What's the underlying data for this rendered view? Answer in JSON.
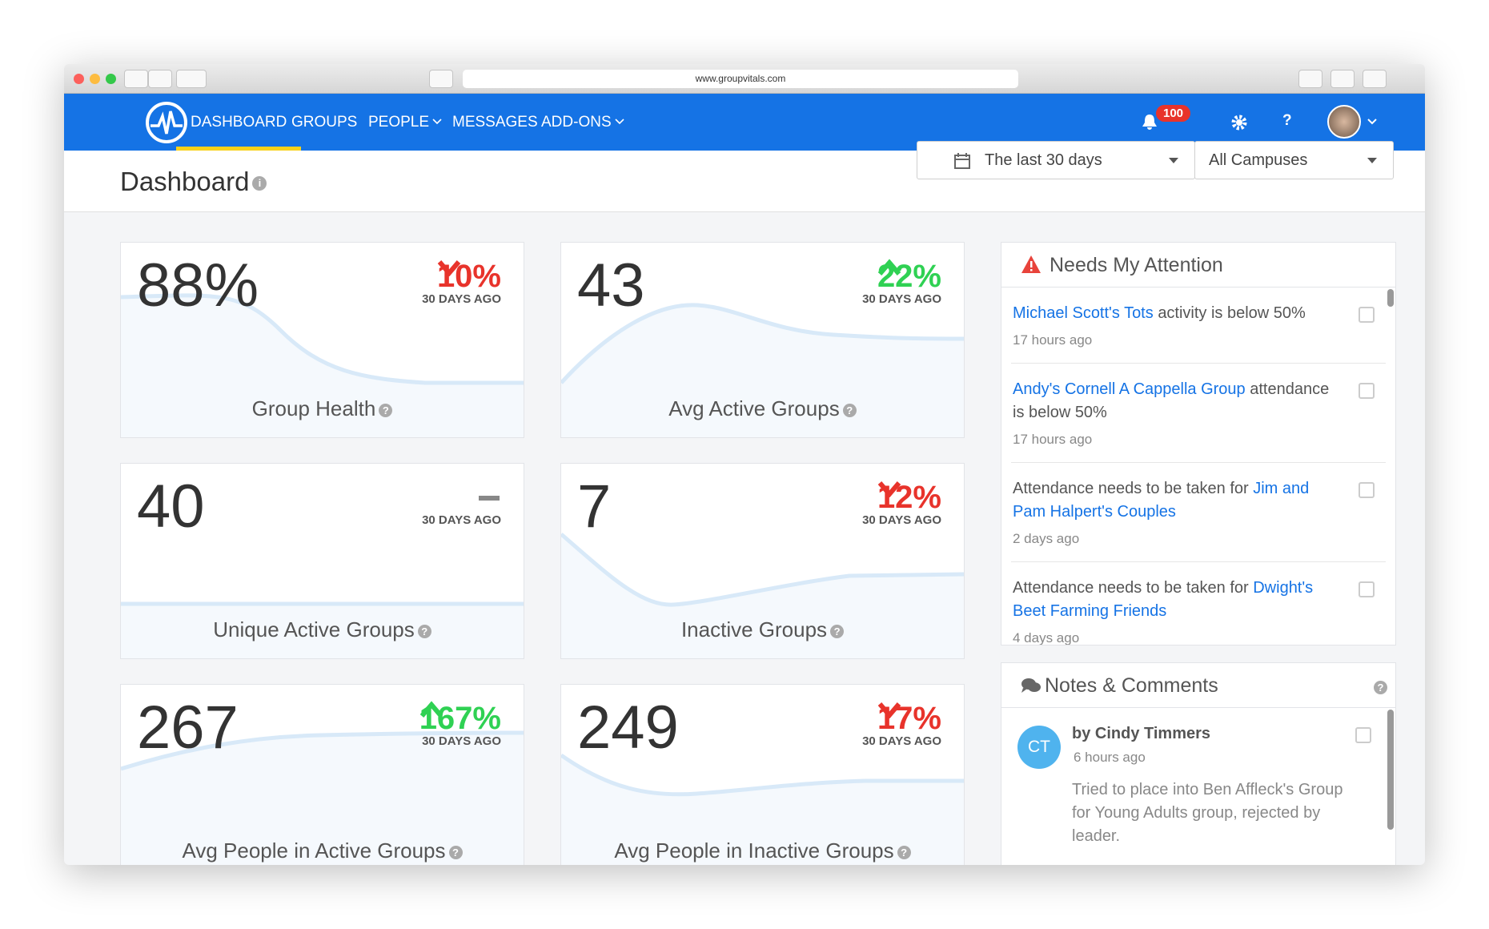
{
  "browser": {
    "url": "www.groupvitals.com"
  },
  "nav": {
    "items": [
      "DASHBOARD",
      "GROUPS",
      "PEOPLE",
      "MESSAGES",
      "ADD-ONS"
    ],
    "dropdown_items": [
      2,
      4
    ],
    "active": 0,
    "notification_count": "100",
    "help": "?"
  },
  "header": {
    "title": "Dashboard",
    "date_range": "The last 30 days",
    "campus": "All Campuses"
  },
  "metrics": [
    {
      "value": "88%",
      "direction": "down",
      "change": "10%",
      "period": "30 DAYS AGO",
      "label": "Group Health"
    },
    {
      "value": "43",
      "direction": "up",
      "change": "22%",
      "period": "30 DAYS AGO",
      "label": "Avg Active Groups"
    },
    {
      "value": "40",
      "direction": "none",
      "period": "30 DAYS AGO",
      "label": "Unique Active Groups"
    },
    {
      "value": "7",
      "direction": "down",
      "change": "12%",
      "period": "30 DAYS AGO",
      "label": "Inactive Groups"
    },
    {
      "value": "267",
      "direction": "up",
      "change": "167%",
      "period": "30 DAYS AGO",
      "label": "Avg People in Active Groups"
    },
    {
      "value": "249",
      "direction": "down",
      "change": "17%",
      "period": "30 DAYS AGO",
      "label": "Avg People in Inactive Groups"
    }
  ],
  "attention": {
    "title": "Needs My Attention",
    "items": [
      {
        "parts": [
          {
            "text": "Michael Scott's Tots",
            "link": true
          },
          {
            "text": "activity is below 50%",
            "link": false
          }
        ],
        "time": "17 hours ago"
      },
      {
        "parts": [
          {
            "text": "Andy's Cornell A Cappella Group",
            "link": true
          },
          {
            "text": "attendance is below 50%",
            "link": false
          }
        ],
        "time": "17 hours ago"
      },
      {
        "parts": [
          {
            "text": "Attendance needs to be taken for",
            "link": false
          },
          {
            "text": "Jim and Pam Halpert's Couples",
            "link": true
          }
        ],
        "time": "2 days ago"
      },
      {
        "parts": [
          {
            "text": "Attendance needs to be taken for",
            "link": false
          },
          {
            "text": "Dwight's Beet Farming Friends",
            "link": true
          }
        ],
        "time": "4 days ago"
      }
    ]
  },
  "notes": {
    "title": "Notes & Comments",
    "items": [
      {
        "initials": "CT",
        "author": "by Cindy Timmers",
        "time": "6 hours ago",
        "text": "Tried to place into Ben Affleck's Group for Young Adults group, rejected by leader."
      }
    ]
  }
}
